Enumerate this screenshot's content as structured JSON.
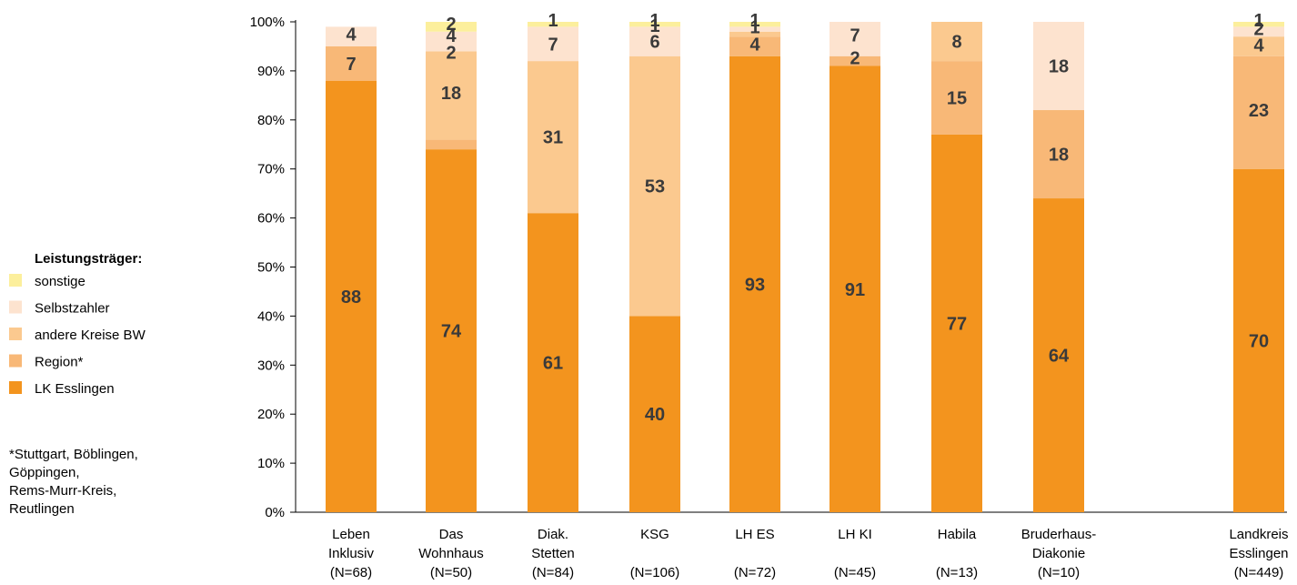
{
  "legend": {
    "title": "Leistungsträger:",
    "footnote_lines": [
      "*Stuttgart, Böblingen,",
      "Göppingen,",
      "Rems-Murr-Kreis,",
      "Reutlingen"
    ]
  },
  "chart_data": {
    "type": "bar",
    "stacked": true,
    "title": "",
    "xlabel": "",
    "ylabel": "",
    "ylim": [
      0,
      100
    ],
    "y_ticks": [
      "0%",
      "10%",
      "20%",
      "30%",
      "40%",
      "50%",
      "60%",
      "70%",
      "80%",
      "90%",
      "100%"
    ],
    "categories": [
      [
        "Leben",
        "Inklusiv",
        "(N=68)"
      ],
      [
        "Das",
        "Wohnhaus",
        "(N=50)"
      ],
      [
        "Diak.",
        "Stetten",
        "(N=84)"
      ],
      [
        "KSG",
        "",
        "(N=106)"
      ],
      [
        "LH ES",
        "",
        "(N=72)"
      ],
      [
        "LH KI",
        "",
        "(N=45)"
      ],
      [
        "Habila",
        "",
        "(N=13)"
      ],
      [
        "Bruderhaus-",
        "Diakonie",
        "(N=10)"
      ],
      [
        "Landkreis",
        "Esslingen",
        "(N=449)"
      ]
    ],
    "series": [
      {
        "name": "LK Esslingen",
        "color": "#F3941E",
        "values": [
          88,
          74,
          61,
          40,
          93,
          91,
          77,
          64,
          70
        ]
      },
      {
        "name": "Region*",
        "color": "#F8B877",
        "values": [
          7,
          2,
          0,
          0,
          4,
          2,
          15,
          18,
          23
        ]
      },
      {
        "name": "andere Kreise BW",
        "color": "#FBC98F",
        "values": [
          0,
          18,
          31,
          53,
          1,
          0,
          8,
          0,
          4
        ]
      },
      {
        "name": "Selbstzahler",
        "color": "#FDE3CF",
        "values": [
          4,
          4,
          7,
          6,
          1,
          7,
          0,
          18,
          2
        ]
      },
      {
        "name": "sonstige",
        "color": "#FCEF9C",
        "values": [
          0,
          2,
          1,
          1,
          1,
          0,
          0,
          0,
          1
        ]
      }
    ],
    "data_labels": [
      [
        {
          "t": "88",
          "v": 44
        },
        {
          "t": "7",
          "v": 91.5
        },
        {
          "t": "4",
          "v": 97.5
        }
      ],
      [
        {
          "t": "74",
          "v": 37
        },
        {
          "t": "18",
          "v": 85.5
        },
        {
          "t": "2",
          "v": 93.8
        },
        {
          "t": "4",
          "v": 97.2
        },
        {
          "t": "2",
          "v": 99.6
        }
      ],
      [
        {
          "t": "61",
          "v": 30.5
        },
        {
          "t": "31",
          "v": 76.5
        },
        {
          "t": "7",
          "v": 95.5
        },
        {
          "t": "1",
          "v": 100.4
        }
      ],
      [
        {
          "t": "40",
          "v": 20
        },
        {
          "t": "53",
          "v": 66.5
        },
        {
          "t": "6",
          "v": 96
        },
        {
          "t": "1",
          "v": 99.3
        },
        {
          "t": "1",
          "v": 100.4
        }
      ],
      [
        {
          "t": "93",
          "v": 46.5
        },
        {
          "t": "4",
          "v": 95.5
        },
        {
          "t": "1",
          "v": 99
        },
        {
          "t": "1",
          "v": 100.4
        }
      ],
      [
        {
          "t": "91",
          "v": 45.5
        },
        {
          "t": "2",
          "v": 92.7
        },
        {
          "t": "7",
          "v": 97.3
        }
      ],
      [
        {
          "t": "77",
          "v": 38.5
        },
        {
          "t": "15",
          "v": 84.5
        },
        {
          "t": "8",
          "v": 96
        }
      ],
      [
        {
          "t": "64",
          "v": 32
        },
        {
          "t": "18",
          "v": 73
        },
        {
          "t": "18",
          "v": 91
        }
      ],
      [
        {
          "t": "70",
          "v": 35
        },
        {
          "t": "23",
          "v": 82
        },
        {
          "t": "4",
          "v": 95.3
        },
        {
          "t": "2",
          "v": 98.6
        },
        {
          "t": "1",
          "v": 100.4
        }
      ]
    ],
    "grid": false,
    "legend_position": "left"
  }
}
